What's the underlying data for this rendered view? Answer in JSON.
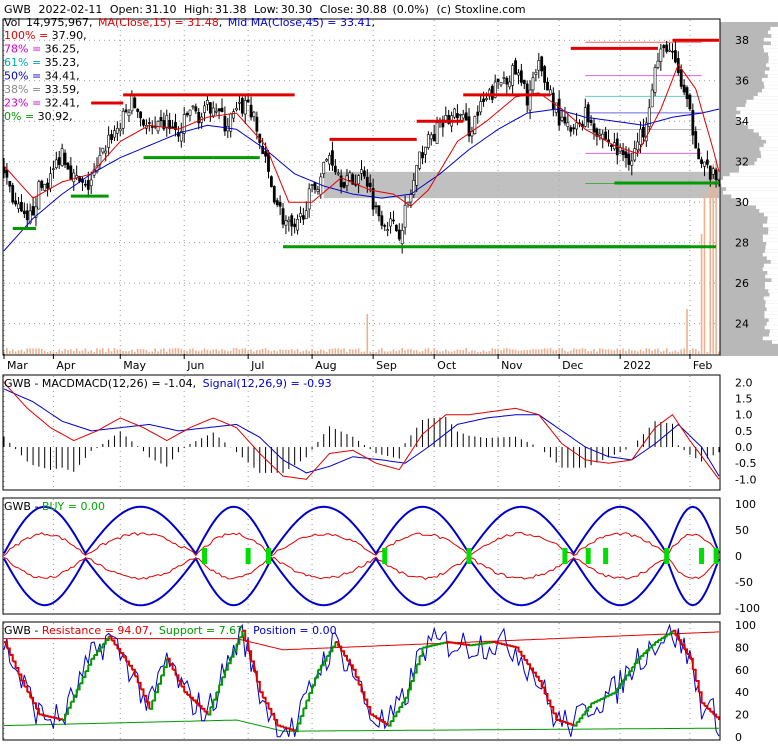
{
  "header": {
    "ticker": "GWB",
    "date": "2022-02-11",
    "open_label": "Open:",
    "open": "31.10",
    "high_label": "High:",
    "high": "31.38",
    "low_label": "Low:",
    "low": "30.30",
    "close_label": "Close:",
    "close": "30.88",
    "change": "(0.0%)",
    "source": "(c) Stoxline.com",
    "vol_label": "Vol",
    "volume": "14,975,967",
    "ma15_label": "MA(Close,15) = 31.48",
    "ma45_label": "Mid MA(Close,45) = 33.41"
  },
  "colors": {
    "candle": "#000000",
    "ma15": "#e00000",
    "ma45": "#0000cc",
    "resistance": "#e00000",
    "support": "#009900",
    "fib": "#cc00cc",
    "grid": "#999999",
    "band": "#b0b0b0",
    "volume": "#f0b090",
    "macd_hist": "#000000",
    "buy": "#00dd00",
    "stoch_k": "#0000cc",
    "stoch_d_up": "#009900",
    "stoch_d_down": "#dd0000"
  },
  "chart_data": [
    {
      "type": "candlestick",
      "name": "price",
      "ylim": [
        22.5,
        39
      ],
      "y_ticks": [
        "24",
        "26",
        "28",
        "30",
        "32",
        "34",
        "36",
        "38"
      ],
      "x_labels": [
        "Mar",
        "Apr",
        "May",
        "Jun",
        "Jul",
        "Aug",
        "Sep",
        "Oct",
        "Nov",
        "Dec",
        "2022",
        "Feb"
      ],
      "fib_levels": [
        {
          "pct": "100%",
          "value": "37.90",
          "color": "#e00000"
        },
        {
          "pct": "78%",
          "value": "36.25",
          "color": "#cc00cc"
        },
        {
          "pct": "61%",
          "value": "35.23",
          "color": "#00aaaa"
        },
        {
          "pct": "50%",
          "value": "34.41",
          "color": "#0000cc"
        },
        {
          "pct": "38%",
          "value": "33.59",
          "color": "#888888"
        },
        {
          "pct": "23%",
          "value": "32.41",
          "color": "#cc00cc"
        },
        {
          "pct": "0%",
          "value": "30.92",
          "color": "#009900"
        }
      ],
      "close_path": [
        [
          0,
          31.6
        ],
        [
          4,
          29.8
        ],
        [
          8,
          28.8
        ],
        [
          12,
          30.6
        ],
        [
          16,
          31.2
        ],
        [
          20,
          32.6
        ],
        [
          24,
          31.2
        ],
        [
          28,
          30.6
        ],
        [
          32,
          31.6
        ],
        [
          36,
          33.2
        ],
        [
          40,
          33.8
        ],
        [
          44,
          35.0
        ],
        [
          48,
          34.0
        ],
        [
          52,
          33.4
        ],
        [
          56,
          34.0
        ],
        [
          60,
          33.2
        ],
        [
          64,
          34.6
        ],
        [
          68,
          34.2
        ],
        [
          72,
          35.0
        ],
        [
          76,
          33.8
        ],
        [
          80,
          34.4
        ],
        [
          84,
          35.0
        ],
        [
          88,
          33.0
        ],
        [
          92,
          30.8
        ],
        [
          96,
          29.2
        ],
        [
          100,
          28.4
        ],
        [
          104,
          30.0
        ],
        [
          108,
          31.0
        ],
        [
          112,
          32.4
        ],
        [
          116,
          31.2
        ],
        [
          120,
          31.0
        ],
        [
          124,
          31.6
        ],
        [
          128,
          29.6
        ],
        [
          132,
          29.0
        ],
        [
          136,
          28.6
        ],
        [
          140,
          30.4
        ],
        [
          144,
          32.6
        ],
        [
          148,
          33.4
        ],
        [
          152,
          34.0
        ],
        [
          156,
          34.4
        ],
        [
          160,
          33.6
        ],
        [
          164,
          34.6
        ],
        [
          168,
          35.4
        ],
        [
          172,
          36.2
        ],
        [
          176,
          36.4
        ],
        [
          180,
          35.2
        ],
        [
          184,
          36.6
        ],
        [
          188,
          35.4
        ],
        [
          192,
          33.8
        ],
        [
          196,
          33.4
        ],
        [
          200,
          34.4
        ],
        [
          204,
          33.6
        ],
        [
          208,
          33.0
        ],
        [
          212,
          32.4
        ],
        [
          216,
          32.2
        ],
        [
          220,
          33.6
        ],
        [
          224,
          36.6
        ],
        [
          228,
          37.8
        ],
        [
          232,
          36.4
        ],
        [
          236,
          34.2
        ],
        [
          240,
          32.0
        ],
        [
          244,
          31.2
        ],
        [
          246,
          30.9
        ]
      ],
      "ma15_path": [
        [
          0,
          31.8
        ],
        [
          10,
          30.2
        ],
        [
          20,
          31.0
        ],
        [
          30,
          31.4
        ],
        [
          40,
          33.0
        ],
        [
          50,
          33.8
        ],
        [
          60,
          33.6
        ],
        [
          70,
          34.2
        ],
        [
          80,
          34.4
        ],
        [
          90,
          32.8
        ],
        [
          98,
          30.0
        ],
        [
          106,
          30.0
        ],
        [
          116,
          31.2
        ],
        [
          126,
          30.6
        ],
        [
          134,
          30.4
        ],
        [
          140,
          29.8
        ],
        [
          146,
          30.6
        ],
        [
          156,
          33.0
        ],
        [
          166,
          34.0
        ],
        [
          176,
          35.2
        ],
        [
          184,
          35.4
        ],
        [
          192,
          34.6
        ],
        [
          200,
          33.6
        ],
        [
          210,
          32.8
        ],
        [
          218,
          32.4
        ],
        [
          226,
          34.6
        ],
        [
          232,
          36.8
        ],
        [
          238,
          35.6
        ],
        [
          244,
          32.6
        ],
        [
          246,
          31.5
        ]
      ],
      "ma45_path": [
        [
          0,
          27.6
        ],
        [
          10,
          29.2
        ],
        [
          20,
          30.4
        ],
        [
          30,
          31.4
        ],
        [
          40,
          32.2
        ],
        [
          50,
          32.8
        ],
        [
          60,
          33.4
        ],
        [
          70,
          33.8
        ],
        [
          80,
          33.6
        ],
        [
          90,
          32.6
        ],
        [
          100,
          31.4
        ],
        [
          110,
          30.8
        ],
        [
          120,
          30.4
        ],
        [
          130,
          30.2
        ],
        [
          140,
          30.4
        ],
        [
          150,
          31.4
        ],
        [
          160,
          32.6
        ],
        [
          170,
          33.6
        ],
        [
          180,
          34.4
        ],
        [
          190,
          34.6
        ],
        [
          200,
          34.2
        ],
        [
          210,
          34.0
        ],
        [
          220,
          33.8
        ],
        [
          230,
          34.2
        ],
        [
          240,
          34.4
        ],
        [
          246,
          34.6
        ]
      ],
      "resistance_segments": [
        [
          30,
          34.9
        ],
        [
          41,
          35.3
        ],
        [
          70,
          35.3
        ],
        [
          112,
          33.1
        ],
        [
          142,
          34.0
        ],
        [
          158,
          35.3
        ],
        [
          195,
          37.6
        ],
        [
          230,
          38.0
        ]
      ],
      "support_segments": [
        [
          3,
          28.7
        ],
        [
          23,
          30.3
        ],
        [
          48,
          32.2
        ],
        [
          72,
          32.2
        ],
        [
          96,
          27.8
        ],
        [
          150,
          27.8
        ]
      ],
      "volume_spikes": [
        [
          125,
          4.0
        ],
        [
          235,
          4.5
        ],
        [
          240,
          12.0
        ],
        [
          241,
          16.0
        ],
        [
          243,
          18.0
        ],
        [
          244,
          19.0
        ],
        [
          245,
          19.5
        ]
      ]
    },
    {
      "type": "line",
      "name": "macd",
      "title_label": "MACD(12,26) = -1.04,",
      "signal_label": "Signal(12,26,9) = -0.93",
      "ylim": [
        -1.3,
        2.2
      ],
      "y_ticks": [
        "2.0",
        "1.5",
        "1.0",
        "0.5",
        "0.0",
        "-0.5",
        "-1.0"
      ],
      "series": [
        {
          "name": "MACD",
          "values": [
            [
              0,
              2.0
            ],
            [
              8,
              1.2
            ],
            [
              16,
              0.6
            ],
            [
              24,
              0.2
            ],
            [
              32,
              0.5
            ],
            [
              40,
              0.9
            ],
            [
              48,
              0.6
            ],
            [
              56,
              0.2
            ],
            [
              64,
              0.6
            ],
            [
              72,
              0.9
            ],
            [
              80,
              0.6
            ],
            [
              88,
              -0.2
            ],
            [
              96,
              -0.9
            ],
            [
              104,
              -1.0
            ],
            [
              112,
              -0.2
            ],
            [
              120,
              -0.1
            ],
            [
              128,
              -0.5
            ],
            [
              136,
              -0.7
            ],
            [
              144,
              0.4
            ],
            [
              152,
              1.0
            ],
            [
              160,
              1.0
            ],
            [
              168,
              1.1
            ],
            [
              176,
              1.2
            ],
            [
              184,
              1.0
            ],
            [
              192,
              0.1
            ],
            [
              200,
              -0.4
            ],
            [
              208,
              -0.5
            ],
            [
              216,
              -0.4
            ],
            [
              224,
              0.6
            ],
            [
              230,
              1.0
            ],
            [
              236,
              0.2
            ],
            [
              246,
              -1.0
            ]
          ]
        },
        {
          "name": "Signal",
          "values": [
            [
              0,
              1.8
            ],
            [
              10,
              1.4
            ],
            [
              20,
              0.8
            ],
            [
              30,
              0.5
            ],
            [
              40,
              0.6
            ],
            [
              50,
              0.7
            ],
            [
              60,
              0.5
            ],
            [
              70,
              0.6
            ],
            [
              80,
              0.7
            ],
            [
              88,
              0.3
            ],
            [
              96,
              -0.4
            ],
            [
              104,
              -0.8
            ],
            [
              112,
              -0.6
            ],
            [
              120,
              -0.3
            ],
            [
              130,
              -0.4
            ],
            [
              138,
              -0.5
            ],
            [
              146,
              0.0
            ],
            [
              156,
              0.7
            ],
            [
              166,
              0.9
            ],
            [
              176,
              1.0
            ],
            [
              184,
              1.0
            ],
            [
              192,
              0.5
            ],
            [
              200,
              0.0
            ],
            [
              208,
              -0.3
            ],
            [
              216,
              -0.4
            ],
            [
              224,
              0.1
            ],
            [
              232,
              0.7
            ],
            [
              240,
              0.0
            ],
            [
              246,
              -0.9
            ]
          ]
        }
      ]
    },
    {
      "type": "line",
      "name": "buy_bands",
      "title_label": "BUY = 0.00",
      "ylim": [
        -110,
        110
      ],
      "y_ticks": [
        "100",
        "50",
        "0",
        "-50",
        "-100"
      ],
      "buy_markers": [
        [
          69,
          0
        ],
        [
          84,
          0
        ],
        [
          91,
          0
        ],
        [
          131,
          0
        ],
        [
          160,
          0
        ],
        [
          193,
          0
        ],
        [
          201,
          0
        ],
        [
          207,
          0
        ],
        [
          228,
          0
        ],
        [
          240,
          0
        ],
        [
          245,
          0
        ]
      ]
    },
    {
      "type": "line",
      "name": "stochastic",
      "resistance_label": "Resistance = 94.07,",
      "support_label": "Support = 7.67,",
      "position_label": "Position = 0.00",
      "ylim": [
        -2,
        102
      ],
      "y_ticks": [
        "100",
        "80",
        "60",
        "40",
        "20",
        "0"
      ],
      "series": [
        {
          "name": "Resistance",
          "values": [
            [
              0,
              88
            ],
            [
              80,
              88
            ],
            [
              96,
              78
            ],
            [
              246,
              94
            ]
          ]
        },
        {
          "name": "Support",
          "values": [
            [
              0,
              10
            ],
            [
              80,
              15
            ],
            [
              96,
              5
            ],
            [
              246,
              7.7
            ]
          ]
        },
        {
          "name": "%D",
          "values": [
            [
              0,
              85
            ],
            [
              6,
              50
            ],
            [
              12,
              20
            ],
            [
              20,
              15
            ],
            [
              30,
              70
            ],
            [
              36,
              90
            ],
            [
              44,
              60
            ],
            [
              50,
              25
            ],
            [
              56,
              70
            ],
            [
              62,
              40
            ],
            [
              70,
              20
            ],
            [
              76,
              60
            ],
            [
              82,
              95
            ],
            [
              88,
              40
            ],
            [
              94,
              10
            ],
            [
              100,
              5
            ],
            [
              108,
              60
            ],
            [
              114,
              85
            ],
            [
              120,
              60
            ],
            [
              126,
              20
            ],
            [
              132,
              10
            ],
            [
              138,
              35
            ],
            [
              144,
              80
            ],
            [
              152,
              85
            ],
            [
              160,
              82
            ],
            [
              168,
              85
            ],
            [
              176,
              80
            ],
            [
              184,
              50
            ],
            [
              190,
              15
            ],
            [
              196,
              10
            ],
            [
              202,
              30
            ],
            [
              210,
              40
            ],
            [
              218,
              70
            ],
            [
              224,
              85
            ],
            [
              230,
              95
            ],
            [
              236,
              70
            ],
            [
              240,
              30
            ],
            [
              246,
              15
            ]
          ]
        }
      ]
    }
  ]
}
